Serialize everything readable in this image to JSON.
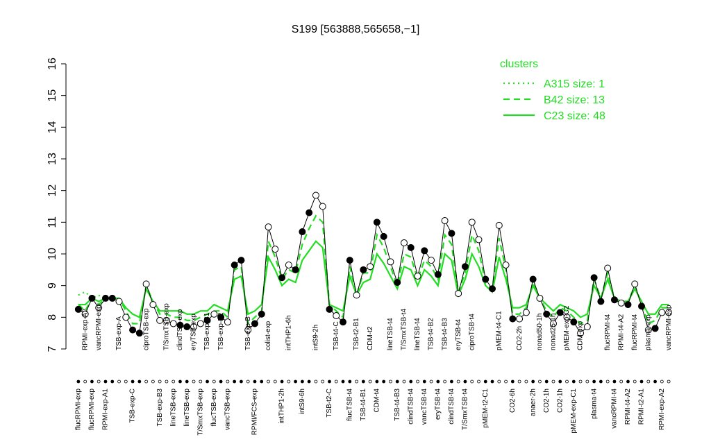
{
  "chart_data": {
    "type": "line",
    "title": "S199 [563888,565658,−1]",
    "ylim": [
      7,
      16
    ],
    "yticks": [
      7,
      8,
      9,
      10,
      11,
      12,
      13,
      14,
      15,
      16
    ],
    "legend_title": "clusters",
    "legend_position": "top-right",
    "point_color": "#000000",
    "categories": [
      "flucRPMI-exp",
      "RPMI-exp-A2",
      "flucRPMI-exp",
      "vancRPMI-exp",
      "RPMI-exp-A1",
      null,
      "TSB-exp-A",
      null,
      "TSB-exp-C",
      null,
      "ciproTSB-exp",
      null,
      "TSB-exp-B3",
      "T/SmxTSB-exp",
      "lineTSB-exp",
      "clindTSB-exp",
      "lineTSB-exp",
      "eryTSB-exp",
      "T/SmxTSB-exp",
      "TSB-exp-B1",
      "flucTSB-exp",
      "TSB-exp-B2",
      "vancTSB-exp",
      null,
      null,
      "TSB-exp-B",
      "RPMI/FCS-exp",
      null,
      "colist-exp",
      null,
      "intTHP1-2h",
      "intTHP1-6h",
      null,
      "intS9-6h",
      null,
      "intS9-2h",
      null,
      "TSB-t2-C",
      "TSB-t4-C",
      null,
      "flucTSB-t4",
      "TSB-t2-B1",
      "TSB-t4-B1",
      "CDM-t2",
      "CDM-t4",
      null,
      "lineTSB-t4",
      "TSB-t4-B3",
      "T/SmxTSB-t4",
      "clindTSB-t4",
      "lineTSB-t4",
      "vancTSB-t4",
      "TSB-t4-B2",
      "eryTSB-t4",
      "TSB-t4-B3",
      "clindTSB-t4",
      "eryTSB-t4",
      "T/SmxTSB-t4",
      "ciproTSB-t4",
      null,
      "pMEM-t2-C1",
      null,
      "pMEM-t4-C1",
      null,
      "CO2-6h",
      "CO2-2h",
      null,
      "anaer-2h",
      "nonad50-1h",
      "CO2-1h",
      "nonad25-1h",
      "CO2-1h",
      "pMEM-exp-C2",
      "pMEM-exp-C1",
      "CDM-exp",
      null,
      "plasma-t4",
      null,
      "flucRPMI-t4",
      "vancRPMI-t4",
      "RPMI-t4-A2",
      "RPMI-t4-A2",
      "flucRPMI-t4",
      "RPMI-t2-A1",
      "plasma-exp",
      null,
      "RPMI-exp-A2",
      "vancRPMI-exp"
    ],
    "values": [
      8.25,
      8.1,
      8.6,
      8.3,
      8.6,
      8.6,
      8.5,
      8.0,
      7.6,
      7.5,
      9.05,
      8.4,
      7.9,
      7.9,
      7.8,
      7.75,
      7.7,
      7.7,
      7.8,
      7.9,
      8.1,
      8.0,
      7.85,
      9.65,
      9.8,
      7.6,
      7.8,
      8.1,
      10.85,
      10.15,
      9.25,
      9.65,
      9.5,
      10.7,
      11.3,
      11.85,
      11.5,
      8.25,
      8.05,
      7.85,
      9.8,
      8.7,
      9.5,
      9.6,
      11.0,
      10.55,
      9.75,
      9.1,
      10.35,
      10.2,
      9.3,
      10.1,
      9.8,
      9.35,
      11.05,
      10.65,
      8.75,
      9.6,
      11.0,
      10.45,
      9.2,
      8.9,
      10.9,
      9.65,
      7.95,
      7.95,
      8.15,
      9.2,
      8.6,
      8.1,
      7.8,
      8.15,
      8.0,
      7.85,
      7.5,
      7.7,
      9.25,
      8.5,
      9.55,
      8.55,
      8.45,
      8.4,
      9.05,
      8.35,
      7.6,
      7.65,
      8.15,
      8.15
    ],
    "point_filled": [
      true,
      false,
      true,
      false,
      true,
      true,
      false,
      false,
      true,
      true,
      false,
      false,
      false,
      false,
      false,
      true,
      true,
      false,
      false,
      true,
      false,
      true,
      false,
      true,
      true,
      false,
      true,
      true,
      false,
      false,
      true,
      false,
      true,
      true,
      true,
      false,
      false,
      true,
      false,
      true,
      true,
      false,
      true,
      false,
      true,
      true,
      false,
      true,
      false,
      true,
      false,
      true,
      false,
      true,
      false,
      true,
      false,
      true,
      false,
      false,
      true,
      true,
      false,
      false,
      true,
      false,
      false,
      true,
      false,
      true,
      false,
      true,
      false,
      true,
      false,
      false,
      true,
      true,
      false,
      true,
      false,
      true,
      false,
      true,
      false,
      true,
      false,
      false
    ],
    "series": [
      {
        "name": "A315 size: 1",
        "color": "#22dd22",
        "style": "dotted",
        "values": [
          8.7,
          8.8,
          8.6,
          8.7,
          8.5,
          null,
          null,
          null,
          null,
          null,
          null,
          null,
          null,
          null,
          null,
          null,
          null,
          null,
          null,
          null,
          null,
          null,
          null,
          null,
          null,
          null,
          null,
          null,
          null,
          null,
          null,
          null,
          null,
          null,
          null,
          null,
          null,
          null,
          null,
          null,
          null,
          null,
          null,
          null,
          null,
          null,
          null,
          null,
          null,
          null,
          null,
          null,
          null,
          null,
          null,
          null,
          null,
          null,
          null,
          null,
          null,
          null,
          null,
          null,
          null,
          null,
          null,
          null,
          null,
          null,
          null,
          null,
          null,
          null,
          null,
          null,
          null,
          null,
          null,
          null,
          null,
          null,
          null,
          null,
          null,
          null,
          null,
          null
        ]
      },
      {
        "name": "B42 size: 13",
        "color": "#22dd22",
        "style": "dashed",
        "values": [
          8.4,
          8.2,
          8.6,
          8.4,
          8.6,
          8.6,
          8.6,
          8.2,
          7.8,
          7.8,
          9.0,
          8.5,
          8.1,
          8.1,
          8.0,
          8.0,
          7.9,
          7.9,
          8.0,
          8.1,
          8.2,
          8.2,
          8.0,
          9.5,
          9.6,
          7.8,
          8.0,
          8.2,
          10.4,
          9.9,
          9.2,
          9.5,
          9.4,
          10.3,
          10.8,
          11.2,
          11.0,
          8.4,
          8.2,
          8.0,
          9.6,
          8.7,
          9.4,
          9.4,
          10.6,
          10.2,
          9.6,
          9.0,
          10.0,
          9.9,
          9.2,
          9.8,
          9.6,
          9.2,
          10.6,
          10.3,
          8.8,
          9.4,
          10.6,
          10.1,
          9.1,
          8.9,
          10.5,
          9.5,
          8.1,
          8.1,
          8.3,
          9.1,
          8.6,
          8.2,
          8.0,
          8.3,
          8.2,
          8.0,
          7.8,
          7.9,
          9.2,
          8.6,
          9.4,
          8.6,
          8.5,
          8.5,
          9.0,
          8.4,
          7.8,
          7.9,
          8.3,
          8.3
        ]
      },
      {
        "name": "C23 size: 48",
        "color": "#22dd22",
        "style": "solid",
        "values": [
          8.4,
          8.4,
          8.6,
          8.5,
          8.6,
          8.6,
          8.6,
          8.3,
          8.1,
          8.0,
          8.9,
          8.5,
          8.2,
          8.2,
          8.2,
          8.2,
          8.1,
          8.1,
          8.2,
          8.2,
          8.4,
          8.3,
          8.2,
          9.2,
          9.3,
          8.1,
          8.2,
          8.4,
          9.9,
          9.5,
          9.0,
          9.2,
          9.1,
          9.8,
          10.1,
          10.4,
          10.2,
          8.4,
          8.3,
          8.2,
          9.3,
          8.7,
          9.1,
          9.2,
          10.0,
          9.7,
          9.3,
          8.9,
          9.6,
          9.5,
          9.0,
          9.5,
          9.3,
          9.0,
          10.0,
          9.8,
          8.7,
          9.2,
          10.0,
          9.6,
          9.0,
          8.8,
          9.9,
          9.2,
          8.3,
          8.3,
          8.4,
          9.0,
          8.6,
          8.4,
          8.2,
          8.4,
          8.3,
          8.2,
          8.0,
          8.1,
          9.0,
          8.6,
          9.2,
          8.6,
          8.5,
          8.5,
          8.9,
          8.5,
          8.1,
          8.1,
          8.4,
          8.4
        ]
      }
    ]
  }
}
